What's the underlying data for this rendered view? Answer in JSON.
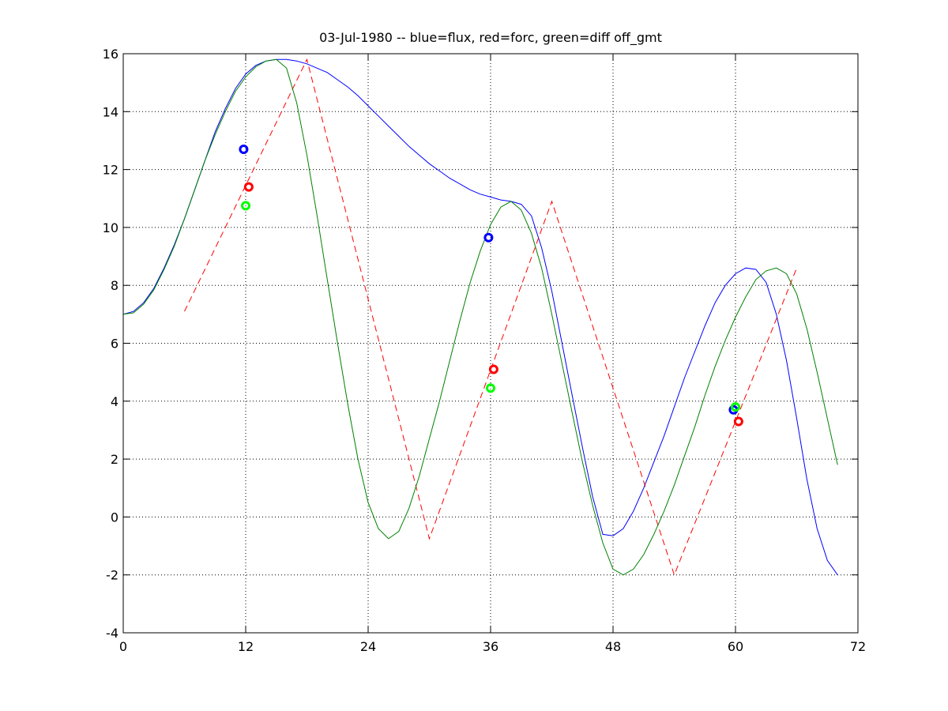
{
  "chart_data": {
    "type": "line",
    "title": "03-Jul-1980 -- blue=flux, red=forc, green=diff off_gmt",
    "xlabel": "",
    "ylabel": "",
    "xlim": [
      0,
      72
    ],
    "ylim": [
      -4,
      16
    ],
    "xticks": [
      0,
      12,
      24,
      36,
      48,
      60,
      72
    ],
    "yticks": [
      -4,
      -2,
      0,
      2,
      4,
      6,
      8,
      10,
      12,
      14,
      16
    ],
    "grid": true,
    "series": [
      {
        "color": "#0000ff",
        "style": "solid",
        "points": [
          [
            0,
            7.0
          ],
          [
            1,
            7.1
          ],
          [
            2,
            7.4
          ],
          [
            3,
            7.9
          ],
          [
            4,
            8.6
          ],
          [
            5,
            9.4
          ],
          [
            6,
            10.3
          ],
          [
            7,
            11.3
          ],
          [
            8,
            12.3
          ],
          [
            9,
            13.3
          ],
          [
            10,
            14.1
          ],
          [
            11,
            14.8
          ],
          [
            12,
            15.3
          ],
          [
            13,
            15.6
          ],
          [
            14,
            15.75
          ],
          [
            15,
            15.8
          ],
          [
            16,
            15.8
          ],
          [
            17,
            15.75
          ],
          [
            18,
            15.65
          ],
          [
            19,
            15.5
          ],
          [
            20,
            15.35
          ],
          [
            21,
            15.1
          ],
          [
            22,
            14.85
          ],
          [
            23,
            14.55
          ],
          [
            24,
            14.2
          ],
          [
            25,
            13.85
          ],
          [
            26,
            13.5
          ],
          [
            27,
            13.15
          ],
          [
            28,
            12.8
          ],
          [
            29,
            12.5
          ],
          [
            30,
            12.2
          ],
          [
            31,
            11.95
          ],
          [
            32,
            11.7
          ],
          [
            33,
            11.5
          ],
          [
            34,
            11.3
          ],
          [
            35,
            11.15
          ],
          [
            36,
            11.05
          ],
          [
            37,
            10.95
          ],
          [
            38,
            10.9
          ],
          [
            39,
            10.8
          ],
          [
            40,
            10.4
          ],
          [
            41,
            9.3
          ],
          [
            42,
            7.8
          ],
          [
            43,
            6.0
          ],
          [
            44,
            4.2
          ],
          [
            45,
            2.4
          ],
          [
            46,
            0.7
          ],
          [
            47,
            -0.6
          ],
          [
            48,
            -0.65
          ],
          [
            49,
            -0.4
          ],
          [
            50,
            0.2
          ],
          [
            51,
            1.0
          ],
          [
            52,
            1.9
          ],
          [
            53,
            2.8
          ],
          [
            54,
            3.8
          ],
          [
            55,
            4.8
          ],
          [
            56,
            5.7
          ],
          [
            57,
            6.6
          ],
          [
            58,
            7.4
          ],
          [
            59,
            8.0
          ],
          [
            60,
            8.4
          ],
          [
            61,
            8.6
          ],
          [
            62,
            8.55
          ],
          [
            63,
            8.1
          ],
          [
            64,
            7.0
          ],
          [
            65,
            5.4
          ],
          [
            66,
            3.4
          ],
          [
            67,
            1.3
          ],
          [
            68,
            -0.4
          ],
          [
            69,
            -1.5
          ],
          [
            70,
            -2.0
          ]
        ]
      },
      {
        "color": "#ff0000",
        "style": "dashed",
        "points": [
          [
            6,
            7.1
          ],
          [
            18,
            15.8
          ],
          [
            30,
            -0.75
          ],
          [
            42,
            10.9
          ],
          [
            54,
            -2.0
          ],
          [
            66,
            8.6
          ]
        ]
      },
      {
        "color": "#008000",
        "style": "solid",
        "points": [
          [
            0,
            7.0
          ],
          [
            1,
            7.05
          ],
          [
            2,
            7.35
          ],
          [
            3,
            7.85
          ],
          [
            4,
            8.55
          ],
          [
            5,
            9.35
          ],
          [
            6,
            10.3
          ],
          [
            7,
            11.3
          ],
          [
            8,
            12.3
          ],
          [
            9,
            13.2
          ],
          [
            10,
            14.0
          ],
          [
            11,
            14.7
          ],
          [
            12,
            15.2
          ],
          [
            13,
            15.55
          ],
          [
            14,
            15.75
          ],
          [
            15,
            15.8
          ],
          [
            16,
            15.5
          ],
          [
            17,
            14.3
          ],
          [
            18,
            12.5
          ],
          [
            19,
            10.4
          ],
          [
            20,
            8.2
          ],
          [
            21,
            6.0
          ],
          [
            22,
            3.9
          ],
          [
            23,
            2.0
          ],
          [
            24,
            0.5
          ],
          [
            25,
            -0.4
          ],
          [
            26,
            -0.75
          ],
          [
            27,
            -0.5
          ],
          [
            28,
            0.3
          ],
          [
            29,
            1.4
          ],
          [
            30,
            2.7
          ],
          [
            31,
            4.0
          ],
          [
            32,
            5.4
          ],
          [
            33,
            6.8
          ],
          [
            34,
            8.1
          ],
          [
            35,
            9.2
          ],
          [
            36,
            10.1
          ],
          [
            37,
            10.7
          ],
          [
            38,
            10.9
          ],
          [
            39,
            10.6
          ],
          [
            40,
            9.8
          ],
          [
            41,
            8.6
          ],
          [
            42,
            7.0
          ],
          [
            43,
            5.3
          ],
          [
            44,
            3.6
          ],
          [
            45,
            1.9
          ],
          [
            46,
            0.4
          ],
          [
            47,
            -0.9
          ],
          [
            48,
            -1.8
          ],
          [
            49,
            -2.0
          ],
          [
            50,
            -1.8
          ],
          [
            51,
            -1.3
          ],
          [
            52,
            -0.6
          ],
          [
            53,
            0.2
          ],
          [
            54,
            1.1
          ],
          [
            55,
            2.1
          ],
          [
            56,
            3.1
          ],
          [
            57,
            4.2
          ],
          [
            58,
            5.2
          ],
          [
            59,
            6.1
          ],
          [
            60,
            6.9
          ],
          [
            61,
            7.6
          ],
          [
            62,
            8.2
          ],
          [
            63,
            8.5
          ],
          [
            64,
            8.6
          ],
          [
            65,
            8.4
          ],
          [
            66,
            7.7
          ],
          [
            67,
            6.5
          ],
          [
            68,
            5.0
          ],
          [
            69,
            3.4
          ],
          [
            70,
            1.8
          ]
        ]
      }
    ],
    "markers": [
      {
        "color": "#0000ff",
        "x": 11.8,
        "y": 12.7
      },
      {
        "color": "#ff0000",
        "x": 12.3,
        "y": 11.4
      },
      {
        "color": "#00ff00",
        "x": 12.0,
        "y": 10.75
      },
      {
        "color": "#0000ff",
        "x": 35.8,
        "y": 9.65
      },
      {
        "color": "#ff0000",
        "x": 36.3,
        "y": 5.1
      },
      {
        "color": "#00ff00",
        "x": 36.0,
        "y": 4.45
      },
      {
        "color": "#0000ff",
        "x": 59.8,
        "y": 3.7
      },
      {
        "color": "#00ff00",
        "x": 60.0,
        "y": 3.8
      },
      {
        "color": "#ff0000",
        "x": 60.3,
        "y": 3.3
      }
    ]
  }
}
